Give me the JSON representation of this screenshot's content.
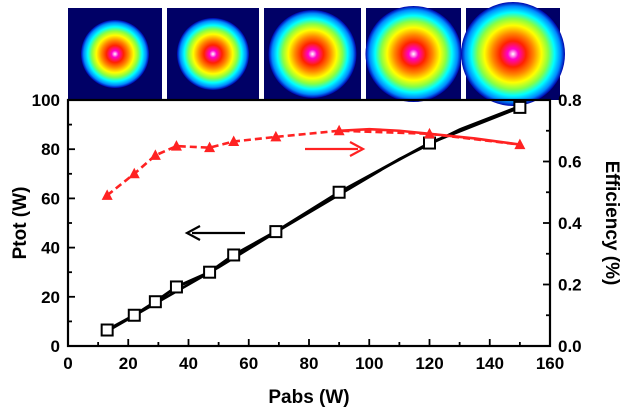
{
  "chart_data": {
    "type": "line",
    "xlabel": "Pabs  (W)",
    "ylabel": "Ptot  (W)",
    "y2label": "Efficiency (%)",
    "xlim": [
      0,
      160
    ],
    "ylim": [
      0,
      100
    ],
    "y2lim": [
      0.0,
      0.8
    ],
    "x_ticks": [
      "0",
      "20",
      "40",
      "60",
      "80",
      "100",
      "120",
      "140",
      "160"
    ],
    "y_ticks": [
      "0",
      "20",
      "40",
      "60",
      "80",
      "100"
    ],
    "y2_ticks": [
      "0.0",
      "0.2",
      "0.4",
      "0.6",
      "0.8"
    ],
    "grid": false,
    "series": [
      {
        "axis": "left",
        "color": "#000000",
        "marker": "open-square",
        "points": [
          [
            13,
            6.5
          ],
          [
            22,
            12.5
          ],
          [
            29,
            18
          ],
          [
            36,
            24
          ],
          [
            47,
            30
          ],
          [
            55,
            37
          ],
          [
            69,
            46.5
          ],
          [
            90,
            62.5
          ],
          [
            120,
            82.5
          ],
          [
            150,
            97
          ]
        ],
        "fit_curve": [
          [
            13,
            6
          ],
          [
            30,
            18
          ],
          [
            50,
            32
          ],
          [
            70,
            47
          ],
          [
            90,
            61.5
          ],
          [
            110,
            76
          ],
          [
            130,
            88
          ],
          [
            150,
            97.5
          ]
        ]
      },
      {
        "axis": "right",
        "color": "#ff2222",
        "marker": "triangle",
        "points": [
          [
            13,
            0.49
          ],
          [
            22,
            0.56
          ],
          [
            29,
            0.62
          ],
          [
            36,
            0.65
          ],
          [
            47,
            0.645
          ],
          [
            55,
            0.665
          ],
          [
            69,
            0.68
          ],
          [
            90,
            0.7
          ],
          [
            120,
            0.69
          ],
          [
            150,
            0.655
          ]
        ],
        "fit_curve": [
          [
            90,
            0.7
          ],
          [
            100,
            0.705
          ],
          [
            110,
            0.7
          ],
          [
            120,
            0.69
          ],
          [
            135,
            0.675
          ],
          [
            150,
            0.655
          ]
        ]
      }
    ],
    "annotations": [
      {
        "type": "arrow",
        "color": "#000000",
        "direction": "left",
        "points_to": "left-axis"
      },
      {
        "type": "arrow",
        "color": "#ff2222",
        "direction": "right",
        "points_to": "right-axis"
      }
    ],
    "beam_profile_insets": 5,
    "beam_profile_colors": [
      "#0000aa",
      "#0088ff",
      "#00ffff",
      "#88ff44",
      "#ffff00",
      "#ff8800",
      "#ff2200",
      "#ff00cc",
      "#ffffff"
    ]
  }
}
